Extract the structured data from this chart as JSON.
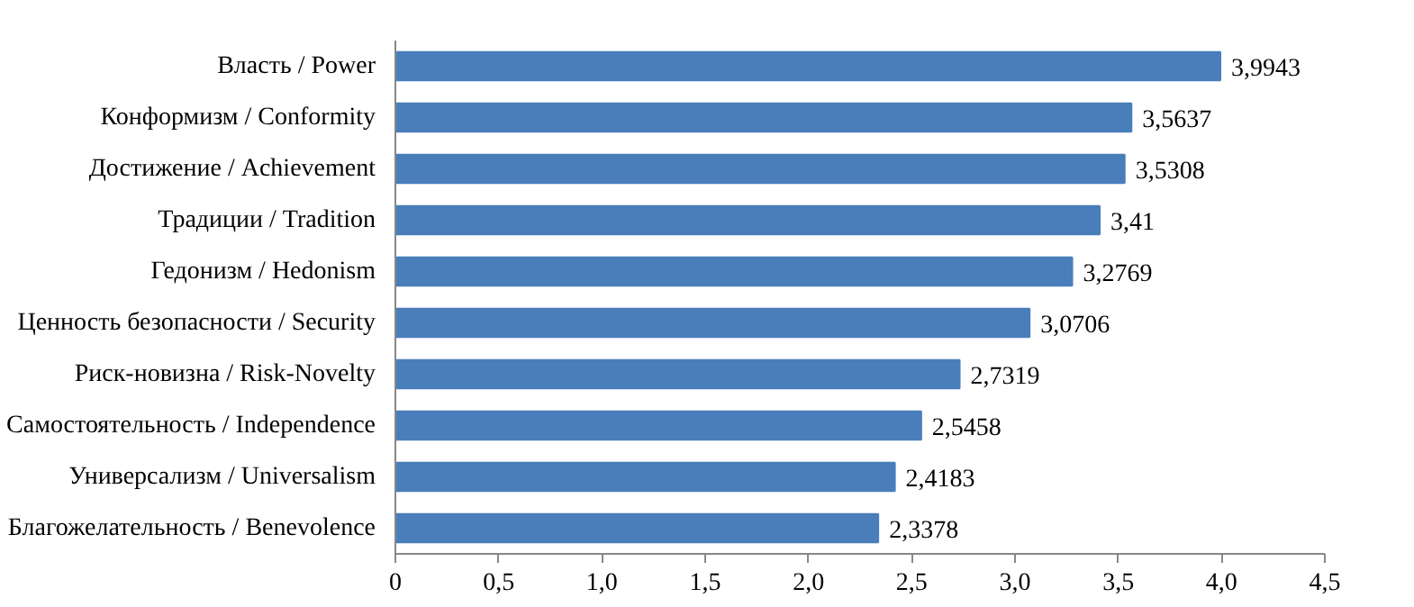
{
  "chart_data": {
    "type": "bar",
    "orientation": "horizontal",
    "categories": [
      "Власть / Power",
      "Конформизм / Conformity",
      "Достижение / Achievement",
      "Традиции / Tradition",
      "Гедонизм / Hedonism",
      "Ценность безопасности / Security",
      "Риск-новизна / Risk-Novelty",
      "Самостоятельность / Independence",
      "Универсализм / Universalism",
      "Благожелательность / Benevolence"
    ],
    "values": [
      3.9943,
      3.5637,
      3.5308,
      3.41,
      3.2769,
      3.0706,
      2.7319,
      2.5458,
      2.4183,
      2.3378
    ],
    "value_labels": [
      "3,9943",
      "3,5637",
      "3,5308",
      "3,41",
      "3,2769",
      "3,0706",
      "2,7319",
      "2,5458",
      "2,4183",
      "2,3378"
    ],
    "color": "#4a7ebb",
    "xlim": [
      0,
      4.5
    ],
    "xticks": [
      0,
      {
        "value": 0.5,
        "label": "0,5"
      },
      {
        "value": 1.0,
        "label": "1,0"
      },
      {
        "value": 1.5,
        "label": "1,5"
      },
      {
        "value": 2.0,
        "label": "2,0"
      },
      {
        "value": 2.5,
        "label": "2,5"
      },
      {
        "value": 3.0,
        "label": "3,0"
      },
      {
        "value": 3.5,
        "label": "3,5"
      },
      {
        "value": 4.0,
        "label": "4,0"
      },
      {
        "value": 4.5,
        "label": "4,5"
      }
    ],
    "grid": false
  }
}
